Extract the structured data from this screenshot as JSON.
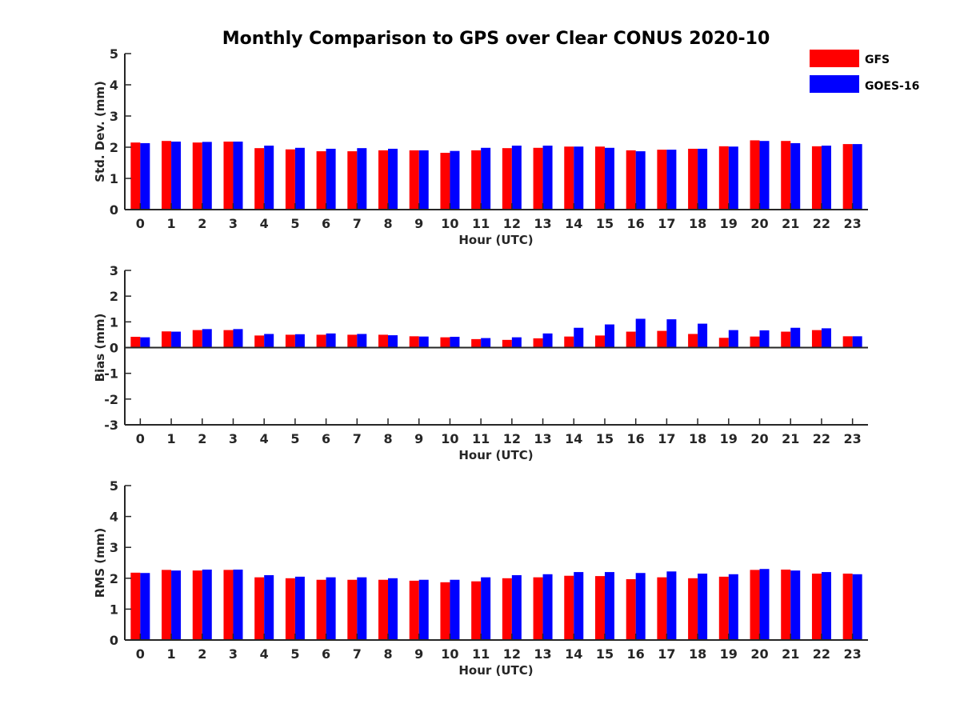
{
  "title": "Monthly Comparison to GPS over Clear CONUS 2020-10",
  "colors": {
    "GFS": "#ff0000",
    "GOES-16": "#0000ff"
  },
  "legend": [
    {
      "name": "GFS",
      "color": "#ff0000"
    },
    {
      "name": "GOES-16",
      "color": "#0000ff"
    }
  ],
  "chart_data": [
    {
      "type": "bar",
      "xlabel": "Hour (UTC)",
      "ylabel": "Std. Dev. (mm)",
      "ylim": [
        0,
        5
      ],
      "yticks": [
        0,
        1,
        2,
        3,
        4,
        5
      ],
      "categories": [
        "0",
        "1",
        "2",
        "3",
        "4",
        "5",
        "6",
        "7",
        "8",
        "9",
        "10",
        "11",
        "12",
        "13",
        "14",
        "15",
        "16",
        "17",
        "18",
        "19",
        "20",
        "21",
        "22",
        "23"
      ],
      "series": [
        {
          "name": "GFS",
          "values": [
            2.15,
            2.2,
            2.15,
            2.18,
            1.97,
            1.93,
            1.87,
            1.87,
            1.9,
            1.9,
            1.82,
            1.9,
            1.97,
            1.98,
            2.02,
            2.02,
            1.9,
            1.92,
            1.95,
            2.03,
            2.22,
            2.2,
            2.03,
            2.1
          ]
        },
        {
          "name": "GOES-16",
          "values": [
            2.13,
            2.18,
            2.17,
            2.18,
            2.05,
            1.98,
            1.95,
            1.97,
            1.95,
            1.9,
            1.88,
            1.98,
            2.05,
            2.05,
            2.02,
            1.98,
            1.87,
            1.92,
            1.95,
            2.02,
            2.2,
            2.13,
            2.05,
            2.1
          ]
        }
      ]
    },
    {
      "type": "bar",
      "xlabel": "Hour (UTC)",
      "ylabel": "Bias (mm)",
      "ylim": [
        -3,
        3
      ],
      "yticks": [
        -3,
        -2,
        -1,
        0,
        1,
        2,
        3
      ],
      "categories": [
        "0",
        "1",
        "2",
        "3",
        "4",
        "5",
        "6",
        "7",
        "8",
        "9",
        "10",
        "11",
        "12",
        "13",
        "14",
        "15",
        "16",
        "17",
        "18",
        "19",
        "20",
        "21",
        "22",
        "23"
      ],
      "series": [
        {
          "name": "GFS",
          "values": [
            0.42,
            0.63,
            0.68,
            0.68,
            0.47,
            0.5,
            0.5,
            0.5,
            0.5,
            0.44,
            0.4,
            0.33,
            0.3,
            0.36,
            0.43,
            0.47,
            0.62,
            0.65,
            0.53,
            0.38,
            0.43,
            0.62,
            0.68,
            0.44
          ]
        },
        {
          "name": "GOES-16",
          "values": [
            0.4,
            0.62,
            0.72,
            0.72,
            0.53,
            0.52,
            0.55,
            0.53,
            0.48,
            0.43,
            0.42,
            0.37,
            0.4,
            0.55,
            0.77,
            0.9,
            1.12,
            1.1,
            0.93,
            0.68,
            0.67,
            0.77,
            0.75,
            0.44
          ]
        }
      ]
    },
    {
      "type": "bar",
      "xlabel": "Hour (UTC)",
      "ylabel": "RMS (mm)",
      "ylim": [
        0,
        5
      ],
      "yticks": [
        0,
        1,
        2,
        3,
        4,
        5
      ],
      "categories": [
        "0",
        "1",
        "2",
        "3",
        "4",
        "5",
        "6",
        "7",
        "8",
        "9",
        "10",
        "11",
        "12",
        "13",
        "14",
        "15",
        "16",
        "17",
        "18",
        "19",
        "20",
        "21",
        "22",
        "23"
      ],
      "series": [
        {
          "name": "GFS",
          "values": [
            2.18,
            2.27,
            2.25,
            2.27,
            2.03,
            2.0,
            1.95,
            1.95,
            1.95,
            1.92,
            1.87,
            1.9,
            2.0,
            2.03,
            2.08,
            2.07,
            1.97,
            2.03,
            2.0,
            2.05,
            2.27,
            2.28,
            2.15,
            2.15
          ]
        },
        {
          "name": "GOES-16",
          "values": [
            2.17,
            2.25,
            2.28,
            2.28,
            2.1,
            2.05,
            2.03,
            2.03,
            2.0,
            1.95,
            1.95,
            2.03,
            2.1,
            2.13,
            2.2,
            2.2,
            2.17,
            2.22,
            2.15,
            2.13,
            2.3,
            2.25,
            2.2,
            2.13
          ]
        }
      ]
    }
  ]
}
